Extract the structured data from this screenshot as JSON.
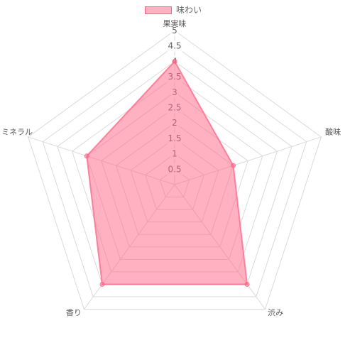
{
  "chart_data": {
    "type": "radar",
    "categories": [
      "果実味",
      "酸味",
      "渋み",
      "香り",
      "ミネラル"
    ],
    "series": [
      {
        "name": "味わい",
        "values": [
          4,
          2,
          4,
          4,
          3
        ]
      }
    ],
    "rlim": [
      0,
      5
    ],
    "ticks": [
      0.5,
      1,
      1.5,
      2,
      2.5,
      3,
      3.5,
      4,
      4.5,
      5
    ],
    "grid": true,
    "legend": "top"
  },
  "colors": {
    "series": "#ff6384",
    "grid": "#dadada",
    "tick_text": "#666666",
    "label_text": "#555555"
  }
}
